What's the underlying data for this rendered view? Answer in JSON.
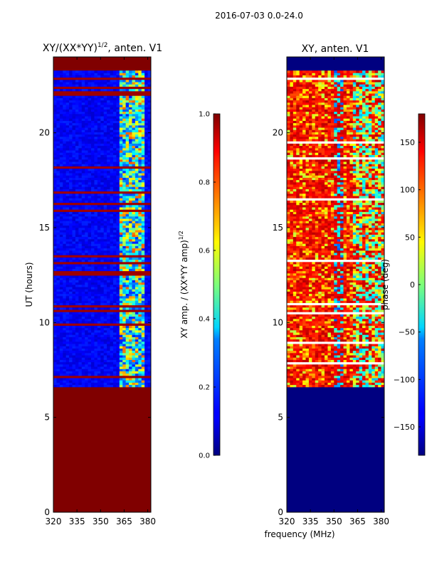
{
  "suptitle": "2016-07-03 0.0-24.0",
  "shared_xlabel": "frequency (MHz)",
  "colors": {
    "jet_low": "#00007f",
    "jet_mid": "#7dff7a",
    "jet_high": "#7f0000",
    "line": "#000000",
    "white_gap": "#ffffff"
  },
  "chart_data": [
    {
      "type": "heatmap",
      "title": "XY/(XX*YY)^{1/2}, anten. V1",
      "title_main": "XY/(XX*YY)",
      "title_exp": "1/2",
      "title_rest": ", anten. V1",
      "xlabel": "",
      "ylabel": "UT (hours)",
      "xlim": [
        320,
        382
      ],
      "ylim": [
        0,
        24
      ],
      "xticks": [
        320,
        335,
        350,
        365,
        380
      ],
      "yticks": [
        0,
        5,
        10,
        15,
        20
      ],
      "data_start_hour": 6.6,
      "data_end_hour": 23.2,
      "no_data_value": 1.0,
      "grid": false,
      "colorbar": {
        "label": "XY amp. / (XX*YY amp)^{1/2}",
        "label_main": "XY amp. / (XX*YY amp)",
        "label_exp": "1/2",
        "vmin": 0.0,
        "vmax": 1.0,
        "ticks": [
          "0.0",
          "0.2",
          "0.4",
          "0.6",
          "0.8",
          "1.0"
        ]
      }
    },
    {
      "type": "heatmap",
      "title": "XY, anten. V1",
      "xlabel": "frequency (MHz)",
      "ylabel": "",
      "xlim": [
        320,
        382
      ],
      "ylim": [
        0,
        24
      ],
      "xticks": [
        320,
        335,
        350,
        365,
        380
      ],
      "yticks": [
        0,
        5,
        10,
        15,
        20
      ],
      "data_start_hour": 6.6,
      "data_end_hour": 23.2,
      "no_data_value": -180,
      "grid": false,
      "colorbar": {
        "label": "phase (deg)",
        "vmin": -180,
        "vmax": 180,
        "ticks": [
          "150",
          "100",
          "50",
          "0",
          "−50",
          "−100",
          "−150"
        ],
        "tick_values": [
          150,
          100,
          50,
          0,
          -50,
          -100,
          -150
        ]
      }
    }
  ]
}
